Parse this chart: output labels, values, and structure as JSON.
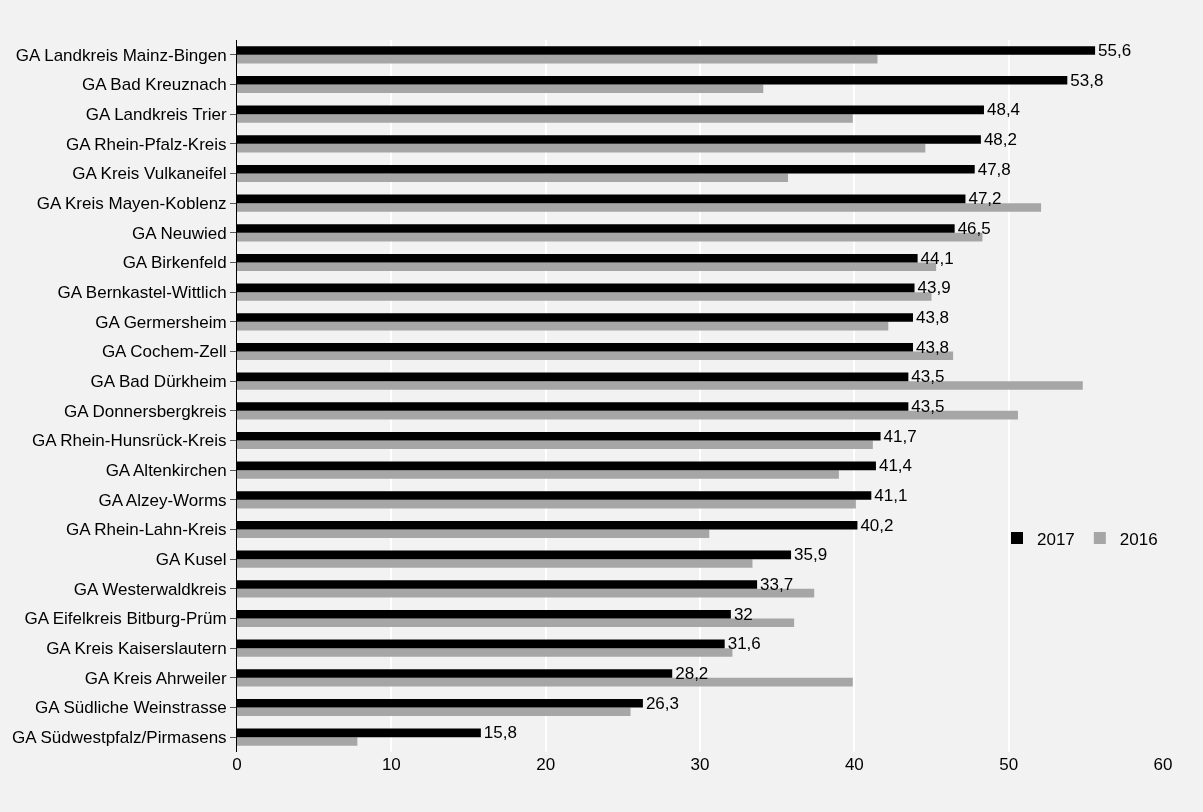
{
  "chart_data": {
    "type": "bar",
    "orientation": "horizontal",
    "categories": [
      "GA Landkreis Mainz-Bingen",
      "GA Bad Kreuznach",
      "GA Landkreis Trier",
      "GA Rhein-Pfalz-Kreis",
      "GA Kreis Vulkaneifel",
      "GA Kreis Mayen-Koblenz",
      "GA Neuwied",
      "GA Birkenfeld",
      "GA Bernkastel-Wittlich",
      "GA Germersheim",
      "GA Cochem-Zell",
      "GA Bad Dürkheim",
      "GA Donnersbergkreis",
      "GA Rhein-Hunsrück-Kreis",
      "GA Altenkirchen",
      "GA Alzey-Worms",
      "GA Rhein-Lahn-Kreis",
      "GA Kusel",
      "GA Westerwaldkreis",
      "GA Eifelkreis Bitburg-Prüm",
      "GA Kreis Kaiserslautern",
      "GA Kreis Ahrweiler",
      "GA Südliche Weinstrasse",
      "GA Südwestpfalz/Pirmasens"
    ],
    "series": [
      {
        "name": "2017",
        "color": "#000000",
        "values": [
          55.6,
          53.8,
          48.4,
          48.2,
          47.8,
          47.2,
          46.5,
          44.1,
          43.9,
          43.8,
          43.8,
          43.5,
          43.5,
          41.7,
          41.4,
          41.1,
          40.2,
          35.9,
          33.7,
          32,
          31.6,
          28.2,
          26.3,
          15.8
        ],
        "value_labels": [
          "55,6",
          "53,8",
          "48,4",
          "48,2",
          "47,8",
          "47,2",
          "46,5",
          "44,1",
          "43,9",
          "43,8",
          "43,8",
          "43,5",
          "43,5",
          "41,7",
          "41,4",
          "41,1",
          "40,2",
          "35,9",
          "33,7",
          "32",
          "31,6",
          "28,2",
          "26,3",
          "15,8"
        ]
      },
      {
        "name": "2016",
        "color": "#a6a6a6",
        "values": [
          41.5,
          34.1,
          39.9,
          44.6,
          35.7,
          52.1,
          48.3,
          45.3,
          45.0,
          42.2,
          46.4,
          54.8,
          50.6,
          41.2,
          39.0,
          40.1,
          30.6,
          33.4,
          37.4,
          36.1,
          32.1,
          39.9,
          25.5,
          7.8
        ]
      }
    ],
    "xlim": [
      0,
      60
    ],
    "xticks": [
      0,
      10,
      20,
      30,
      40,
      50,
      60
    ],
    "grid": "x",
    "legend": "right"
  }
}
